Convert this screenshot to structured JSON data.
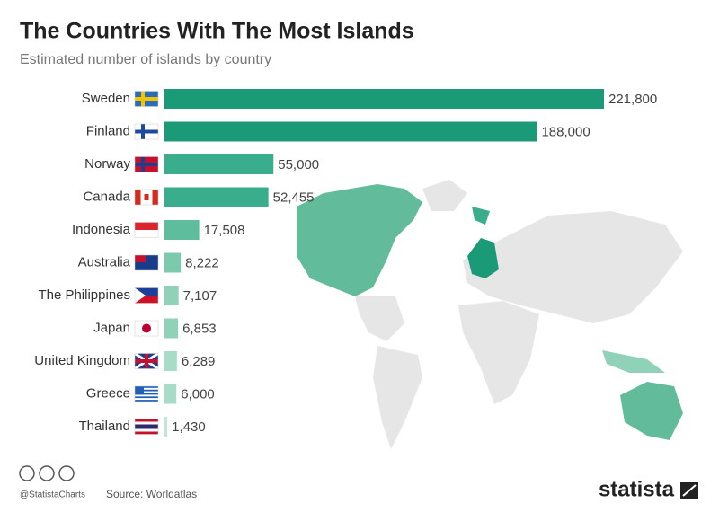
{
  "chart_data": {
    "type": "bar",
    "orientation": "horizontal",
    "title": "The Countries With The Most Islands",
    "subtitle": "Estimated number of islands by country",
    "categories": [
      "Sweden",
      "Finland",
      "Norway",
      "Canada",
      "Indonesia",
      "Australia",
      "The Philippines",
      "Japan",
      "United Kingdom",
      "Greece",
      "Thailand"
    ],
    "values": [
      221800,
      188000,
      55000,
      52455,
      17508,
      8222,
      7107,
      6853,
      6289,
      6000,
      1430
    ],
    "value_labels": [
      "221,800",
      "188,000",
      "55,000",
      "52,455",
      "17,508",
      "8,222",
      "7,107",
      "6,853",
      "6,289",
      "6,000",
      "1,430"
    ],
    "colors": [
      "#1b9a77",
      "#1b9a77",
      "#3aae8c",
      "#3aae8c",
      "#5dbd9d",
      "#7ccaae",
      "#8fd2b9",
      "#8fd2b9",
      "#a6dcc8",
      "#a6dcc8",
      "#c0e6d7"
    ],
    "credit": "@StatistaCharts",
    "source": "Source: Worldatlas",
    "brand": "statista"
  }
}
